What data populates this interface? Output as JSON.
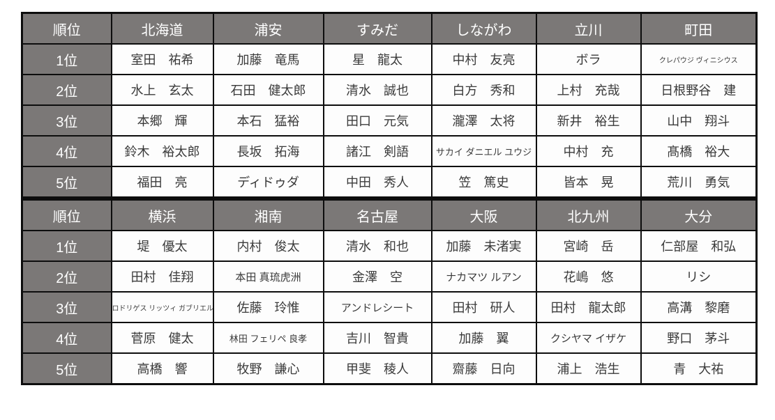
{
  "colors": {
    "header_bg": "#7b7877",
    "header_text": "#ffffff",
    "cell_bg": "#fdfdfd",
    "cell_text": "#3a3a3a",
    "border": "#0d0d0d"
  },
  "tables": [
    {
      "headers": [
        "順位",
        "北海道",
        "浦安",
        "すみだ",
        "しながわ",
        "立川",
        "町田"
      ],
      "rows": [
        {
          "rank": "1位",
          "cells": [
            "室田　祐希",
            "加藤　竜馬",
            "星　龍太",
            "中村　友亮",
            "ボラ",
            "クレパウジ ヴィニシウス"
          ]
        },
        {
          "rank": "2位",
          "cells": [
            "水上　玄太",
            "石田　健太郎",
            "清水　誠也",
            "白方　秀和",
            "上村　充哉",
            "日根野谷　建"
          ]
        },
        {
          "rank": "3位",
          "cells": [
            "本郷　輝",
            "本石　猛裕",
            "田口　元気",
            "瀧澤　太将",
            "新井　裕生",
            "山中　翔斗"
          ]
        },
        {
          "rank": "4位",
          "cells": [
            "鈴木　裕太郎",
            "長坂　拓海",
            "諸江　剣語",
            "サカイ ダニエル ユウジ",
            "中村　充",
            "髙橋　裕大"
          ]
        },
        {
          "rank": "5位",
          "cells": [
            "福田　亮",
            "ディドゥダ",
            "中田　秀人",
            "笠　篤史",
            "皆本　晃",
            "荒川　勇気"
          ]
        }
      ]
    },
    {
      "headers": [
        "順位",
        "横浜",
        "湘南",
        "名古屋",
        "大阪",
        "北九州",
        "大分"
      ],
      "rows": [
        {
          "rank": "1位",
          "cells": [
            "堤　優太",
            "内村　俊太",
            "清水　和也",
            "加藤　未渚実",
            "宮崎　岳",
            "仁部屋　和弘"
          ]
        },
        {
          "rank": "2位",
          "cells": [
            "田村　佳翔",
            "本田 真琉虎洲",
            "金澤　空",
            "ナカマツ ルアン",
            "花嶋　悠",
            "リシ"
          ]
        },
        {
          "rank": "3位",
          "cells": [
            "ロドリゲス リッツィ ガブリエル",
            "佐藤　玲惟",
            "アンドレシート",
            "田村　研人",
            "田村　龍太郎",
            "高溝　黎磨"
          ]
        },
        {
          "rank": "4位",
          "cells": [
            "菅原　健太",
            "林田 フェリペ 良孝",
            "吉川　智貴",
            "加藤　翼",
            "クシヤマ イザケ",
            "野口　茅斗"
          ]
        },
        {
          "rank": "5位",
          "cells": [
            "高橋　響",
            "牧野　謙心",
            "甲斐　稜人",
            "齋藤　日向",
            "浦上　浩生",
            "青　大祐"
          ]
        }
      ]
    }
  ]
}
